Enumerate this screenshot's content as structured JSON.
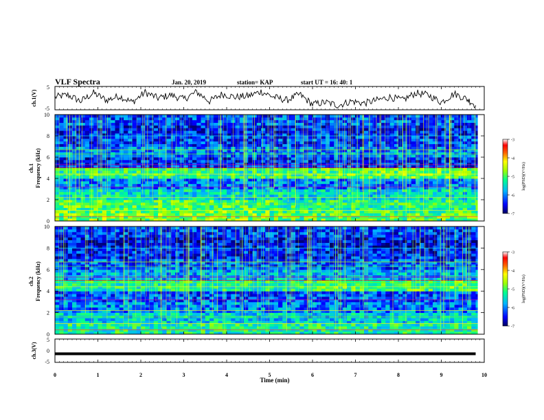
{
  "header": {
    "title": "VLF Spectra",
    "date": "Jan. 20, 2019",
    "station": "station= KAP",
    "start": "start UT =  16: 40: 1"
  },
  "colorbar": {
    "label": "log(PSD)(V²/Hz)",
    "ticks": [
      "-3",
      "-4",
      "-5",
      "-6",
      "-7"
    ],
    "range": [
      -7,
      -3
    ],
    "colors": [
      "#000080",
      "#0000ff",
      "#00c8ff",
      "#00ff80",
      "#80ff00",
      "#ffff00",
      "#ff8000",
      "#ff0000",
      "#ffffff"
    ]
  },
  "chart_data": [
    {
      "type": "line",
      "panel": "ch1-waveform",
      "ylabel": "ch.1(V)",
      "ylim": [
        -5,
        5
      ],
      "yticks": [
        "5",
        "-5"
      ],
      "xlim": [
        0,
        10
      ],
      "x": [
        0,
        0.3,
        0.6,
        0.9,
        1.2,
        1.5,
        1.8,
        2.1,
        2.4,
        2.7,
        3.0,
        3.3,
        3.6,
        3.9,
        4.2,
        4.5,
        4.8,
        5.1,
        5.4,
        5.7,
        6.0,
        6.3,
        6.6,
        6.9,
        7.2,
        7.5,
        7.8,
        8.1,
        8.4,
        8.7,
        9.0,
        9.3,
        9.6,
        9.8
      ],
      "values": [
        0.5,
        1.5,
        -1.5,
        2.5,
        -1.0,
        1.0,
        -2.0,
        2.8,
        0.0,
        1.5,
        -0.5,
        3.0,
        -1.5,
        2.0,
        0.5,
        1.0,
        3.2,
        0.5,
        -1.0,
        1.8,
        -3.0,
        -2.0,
        -3.5,
        -1.5,
        -2.5,
        -1.0,
        0.5,
        -1.0,
        2.5,
        1.5,
        -2.0,
        2.2,
        -0.5,
        -3.5
      ]
    },
    {
      "type": "heatmap",
      "panel": "ch1-spectrogram",
      "ylabel": "ch.1\nFrequency (kHz)",
      "ylim": [
        0,
        10
      ],
      "yticks": [
        "0",
        "2",
        "4",
        "6",
        "8",
        "10"
      ],
      "xlim": [
        0,
        10
      ],
      "scale": "log(PSD) from -7 to -3",
      "frequency_bands_khz": [
        0,
        1,
        2,
        3,
        4,
        5,
        6,
        7,
        8,
        9,
        10
      ],
      "band_mean_log_psd": [
        -5.0,
        -5.2,
        -5.5,
        -6.0,
        -5.2,
        -6.4,
        -6.0,
        -6.3,
        -6.4,
        -6.2
      ]
    },
    {
      "type": "heatmap",
      "panel": "ch2-spectrogram",
      "ylabel": "ch.2\nFrequency (kHz)",
      "ylim": [
        0,
        10
      ],
      "yticks": [
        "0",
        "2",
        "4",
        "6",
        "8",
        "10"
      ],
      "xlim": [
        0,
        10
      ],
      "scale": "log(PSD) from -7 to -3",
      "frequency_bands_khz": [
        0,
        1,
        2,
        3,
        4,
        5,
        6,
        7,
        8,
        9,
        10
      ],
      "band_mean_log_psd": [
        -5.3,
        -5.6,
        -6.0,
        -6.2,
        -5.3,
        -5.8,
        -6.2,
        -6.4,
        -6.5,
        -6.3
      ]
    },
    {
      "type": "line",
      "panel": "ch3-waveform",
      "ylabel": "ch.3(V)",
      "ylim": [
        -5,
        5
      ],
      "yticks": [
        "5",
        "0",
        "-5"
      ],
      "xlim": [
        0,
        10
      ],
      "x": [
        0,
        9.8
      ],
      "values": [
        -1.5,
        -1.5
      ]
    }
  ],
  "xaxis": {
    "label": "Time (min)",
    "ticks": [
      "0",
      "1",
      "2",
      "3",
      "4",
      "5",
      "6",
      "7",
      "8",
      "9",
      "10"
    ]
  }
}
